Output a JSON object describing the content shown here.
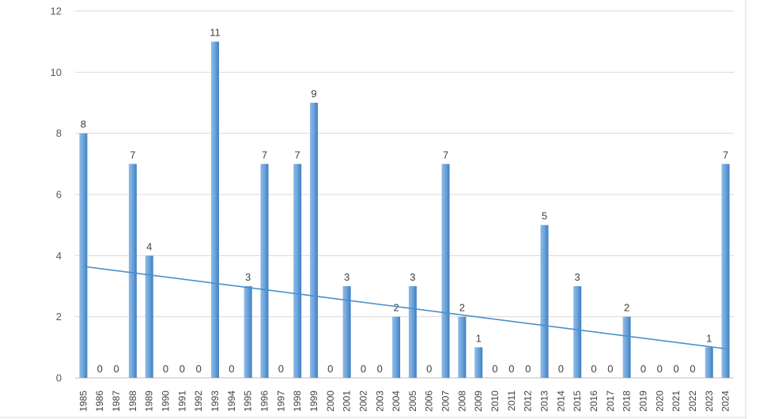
{
  "chart_data": {
    "type": "bar",
    "title": "",
    "xlabel": "",
    "ylabel": "",
    "ylim": [
      0,
      12
    ],
    "yticks": [
      0,
      2,
      4,
      6,
      8,
      10,
      12
    ],
    "grid": true,
    "legend": "none",
    "bar_color": "#5b9bd5",
    "bar_color_light": "#8fbbe6",
    "trendline": {
      "type": "linear",
      "color": "#4a90c8"
    },
    "categories": [
      "1985",
      "1986",
      "1987",
      "1988",
      "1989",
      "1990",
      "1991",
      "1992",
      "1993",
      "1994",
      "1995",
      "1996",
      "1997",
      "1998",
      "1999",
      "2000",
      "2001",
      "2002",
      "2003",
      "2004",
      "2005",
      "2006",
      "2007",
      "2008",
      "2009",
      "2010",
      "2011",
      "2012",
      "2013",
      "2014",
      "2015",
      "2016",
      "2017",
      "2018",
      "2019",
      "2020",
      "2021",
      "2022",
      "2023",
      "2024"
    ],
    "values": [
      8,
      0,
      0,
      7,
      4,
      0,
      0,
      0,
      11,
      0,
      3,
      7,
      0,
      7,
      9,
      0,
      3,
      0,
      0,
      2,
      3,
      0,
      7,
      2,
      1,
      0,
      0,
      0,
      5,
      0,
      3,
      0,
      0,
      2,
      0,
      0,
      0,
      0,
      1,
      7
    ]
  }
}
